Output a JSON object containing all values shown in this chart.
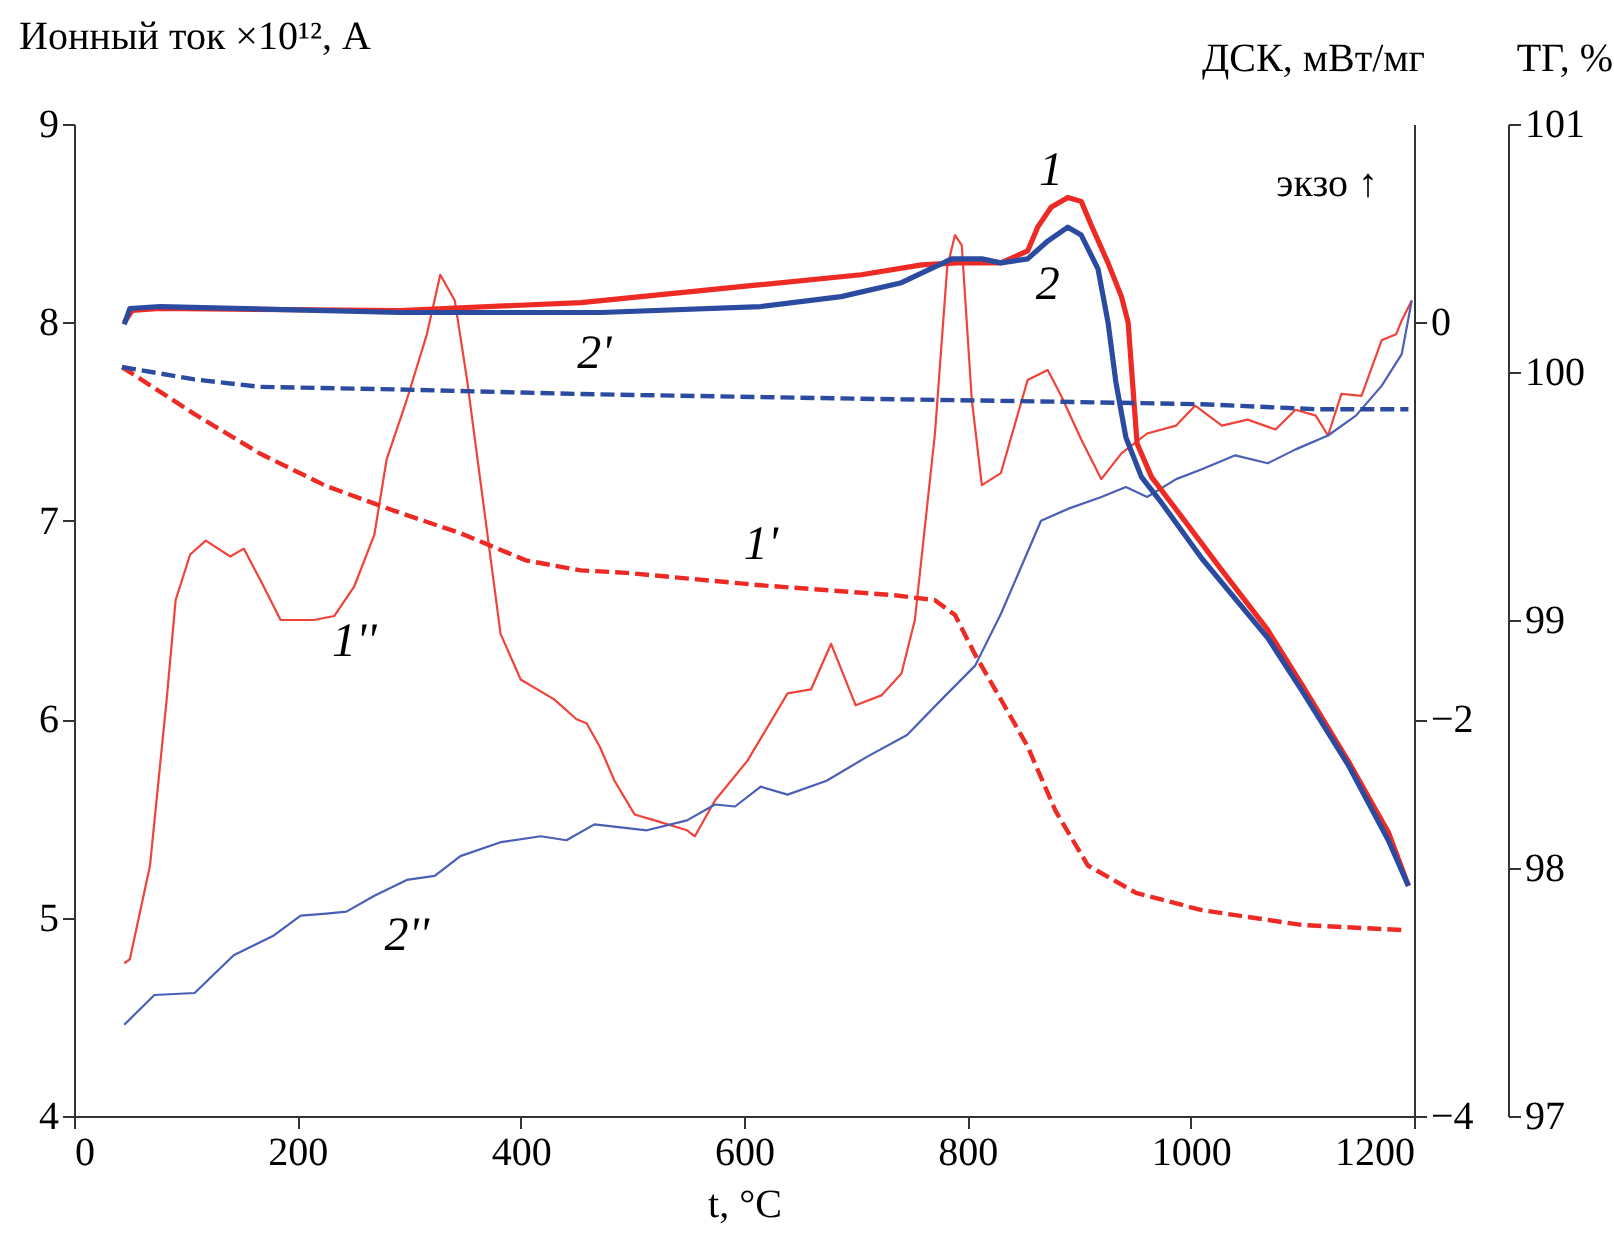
{
  "chart_data": {
    "type": "line",
    "xlabel": "t, °C",
    "ylabel": "Ионный ток ×10¹², А",
    "y2label": "ДСК, мВт/мг",
    "y3label": "ТГ, %",
    "xlim": [
      0,
      1200
    ],
    "xticks": [
      0,
      200,
      400,
      600,
      800,
      1000,
      1200
    ],
    "ylim": [
      4,
      9
    ],
    "yticks": [
      4,
      5,
      6,
      7,
      8,
      9
    ],
    "y2lim": [
      -4,
      1
    ],
    "y2ticks": [
      -4,
      -2,
      0
    ],
    "y3lim": [
      97,
      101
    ],
    "y3ticks": [
      97,
      98,
      99,
      100,
      101
    ],
    "grid": false,
    "series": [
      {
        "name": "1",
        "color": "#ee2a24",
        "axis": "y2",
        "line_style": "solid",
        "x": [
          45,
          52,
          77,
          292,
          454,
          615,
          705,
          759,
          791,
          813,
          830,
          854,
          863,
          875,
          890,
          902,
          911,
          926,
          938,
          944,
          947,
          952,
          965,
          992,
          1028,
          1069,
          1100,
          1141,
          1177,
          1195
        ],
        "values": [
          0,
          0.06,
          0.07,
          0.06,
          0.1,
          0.19,
          0.24,
          0.29,
          0.3,
          0.3,
          0.3,
          0.36,
          0.48,
          0.58,
          0.63,
          0.61,
          0.49,
          0.3,
          0.13,
          0,
          -0.23,
          -0.61,
          -0.78,
          -0.98,
          -1.25,
          -1.55,
          -1.83,
          -2.21,
          -2.57,
          -2.84
        ]
      },
      {
        "name": "2",
        "color": "#2b4ba0",
        "axis": "y2",
        "line_style": "solid",
        "x": [
          45,
          50,
          77,
          292,
          472,
          615,
          687,
          741,
          786,
          813,
          830,
          854,
          872,
          890,
          902,
          917,
          926,
          933,
          942,
          956,
          974,
          1010,
          1069,
          1100,
          1141,
          1177,
          1195
        ],
        "values": [
          -0.01,
          0.07,
          0.08,
          0.05,
          0.05,
          0.08,
          0.13,
          0.2,
          0.32,
          0.32,
          0.3,
          0.32,
          0.41,
          0.48,
          0.44,
          0.27,
          0,
          -0.3,
          -0.58,
          -0.78,
          -0.91,
          -1.19,
          -1.59,
          -1.86,
          -2.23,
          -2.61,
          -2.84
        ]
      },
      {
        "name": "1'",
        "color": "#ee2a24",
        "axis": "y3",
        "line_style": "dashed",
        "x": [
          43,
          108,
          167,
          226,
          287,
          346,
          405,
          454,
          495,
          615,
          735,
          771,
          789,
          807,
          830,
          854,
          879,
          908,
          951,
          1010,
          1100,
          1189
        ],
        "values": [
          100.02,
          99.83,
          99.67,
          99.54,
          99.44,
          99.35,
          99.24,
          99.2,
          99.19,
          99.14,
          99.1,
          99.08,
          99.02,
          98.86,
          98.68,
          98.49,
          98.23,
          98.01,
          97.9,
          97.83,
          97.77,
          97.75
        ]
      },
      {
        "name": "2'",
        "color": "#2b4ba0",
        "axis": "y3",
        "line_style": "dashed",
        "x": [
          43,
          108,
          167,
          287,
          466,
          735,
          884,
          1010,
          1112,
          1195
        ],
        "values": [
          100.02,
          99.97,
          99.94,
          99.93,
          99.91,
          99.89,
          99.88,
          99.87,
          99.85,
          99.85
        ]
      },
      {
        "name": "1''",
        "color": "#f0433a",
        "axis": "y",
        "line_style": "solid",
        "x": [
          45,
          50,
          68,
          83,
          91,
          104,
          118,
          140,
          152,
          167,
          185,
          215,
          233,
          251,
          269,
          280,
          298,
          316,
          328,
          341,
          352,
          382,
          400,
          430,
          450,
          459,
          471,
          484,
          502,
          520,
          549,
          556,
          574,
          603,
          639,
          660,
          678,
          700,
          723,
          741,
          753,
          771,
          782,
          789,
          795,
          804,
          813,
          830,
          854,
          872,
          884,
          902,
          920,
          938,
          961,
          987,
          1004,
          1028,
          1051,
          1076,
          1094,
          1112,
          1123,
          1135,
          1153,
          1171,
          1184,
          1189,
          1198
        ],
        "values": [
          4.77,
          4.79,
          5.26,
          6.1,
          6.6,
          6.83,
          6.9,
          6.82,
          6.86,
          6.7,
          6.5,
          6.5,
          6.52,
          6.67,
          6.93,
          7.31,
          7.61,
          7.94,
          8.24,
          8.11,
          7.71,
          6.43,
          6.2,
          6.1,
          6.0,
          5.98,
          5.86,
          5.69,
          5.52,
          5.49,
          5.44,
          5.41,
          5.59,
          5.79,
          6.13,
          6.15,
          6.38,
          6.07,
          6.12,
          6.23,
          6.5,
          7.44,
          8.28,
          8.44,
          8.39,
          7.61,
          7.18,
          7.24,
          7.71,
          7.76,
          7.63,
          7.41,
          7.21,
          7.34,
          7.44,
          7.48,
          7.58,
          7.48,
          7.51,
          7.46,
          7.56,
          7.53,
          7.43,
          7.64,
          7.63,
          7.91,
          7.94,
          8.01,
          8.11
        ]
      },
      {
        "name": "2''",
        "color": "#4a5fb5",
        "axis": "y",
        "line_style": "solid",
        "x": [
          45,
          72,
          108,
          143,
          179,
          203,
          226,
          244,
          269,
          298,
          323,
          346,
          382,
          418,
          441,
          466,
          513,
          549,
          574,
          592,
          615,
          639,
          674,
          710,
          746,
          777,
          807,
          830,
          866,
          890,
          920,
          942,
          961,
          987,
          1010,
          1040,
          1069,
          1094,
          1123,
          1148,
          1171,
          1189,
          1198
        ],
        "values": [
          4.46,
          4.61,
          4.62,
          4.81,
          4.91,
          5.01,
          5.02,
          5.03,
          5.11,
          5.19,
          5.21,
          5.31,
          5.38,
          5.41,
          5.39,
          5.47,
          5.44,
          5.49,
          5.57,
          5.56,
          5.66,
          5.62,
          5.69,
          5.81,
          5.92,
          6.1,
          6.27,
          6.53,
          7.0,
          7.06,
          7.12,
          7.17,
          7.12,
          7.21,
          7.26,
          7.33,
          7.29,
          7.36,
          7.43,
          7.53,
          7.68,
          7.84,
          8.11
        ]
      }
    ],
    "annotations": [
      "экзо ↑"
    ]
  }
}
